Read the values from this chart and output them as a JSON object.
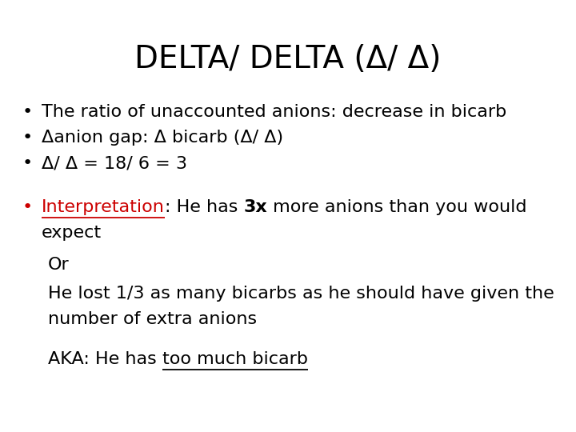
{
  "title": "DELTA/ DELTA (Δ/ Δ)",
  "title_fontsize": 28,
  "title_color": "#000000",
  "bg_color": "#ffffff",
  "bullet_items": [
    "The ratio of unaccounted anions: decrease in bicarb",
    "Δanion gap: Δ bicarb (Δ/ Δ)",
    "Δ/ Δ = 18/ 6 = 3"
  ],
  "bullet_color": "#000000",
  "bullet_fontsize": 16,
  "interp_label": "Interpretation",
  "interp_label_color": "#cc0000",
  "interp_rest": ": He has ",
  "interp_bold": "3x",
  "interp_rest2": " more anions than you would",
  "interp_line2": "expect",
  "interp_fontsize": 16,
  "sub_text1": "Or",
  "sub_text2": "He lost 1/3 as many bicarbs as he should have given the",
  "sub_text3": "number of extra anions",
  "aka_text": "AKA: He has ",
  "aka_underline": "too much bicarb",
  "sub_fontsize": 16,
  "font_family": "DejaVu Sans"
}
